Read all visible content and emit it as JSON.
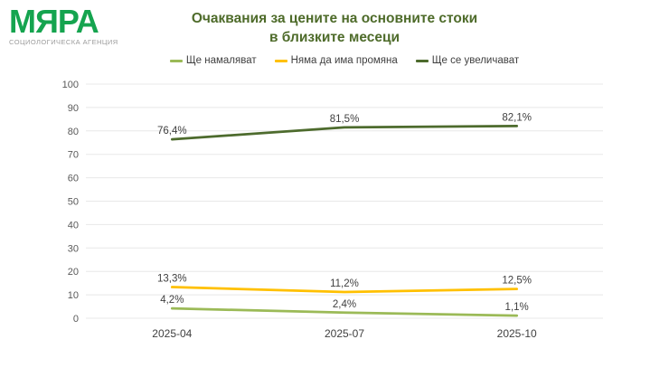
{
  "logo": {
    "brand": "МЯРА",
    "subtitle": "СОЦИОЛОГИЧЕСКА АГЕНЦИЯ",
    "brand_color": "#15a44f",
    "subtitle_color": "#9b9b9b"
  },
  "title": {
    "line1": "Очаквания за цените на основните стоки",
    "line2": "в близките месеци",
    "color": "#4e6b2a"
  },
  "legend": {
    "items": [
      {
        "label": "Ще намаляват",
        "color": "#9bba57"
      },
      {
        "label": "Няма да има промяна",
        "color": "#ffc000"
      },
      {
        "label": "Ще се увеличават",
        "color": "#4d6b2d"
      }
    ]
  },
  "chart_data": {
    "type": "line",
    "title": "Очаквания за цените на основните стоки в близките месеци",
    "categories": [
      "2025-04",
      "2025-07",
      "2025-10"
    ],
    "series": [
      {
        "name": "Ще намаляват",
        "values": [
          4.2,
          2.4,
          1.1
        ],
        "labels": [
          "4,2%",
          "2,4%",
          "1,1%"
        ],
        "color": "#9bba57"
      },
      {
        "name": "Няма да има промяна",
        "values": [
          13.3,
          11.2,
          12.5
        ],
        "labels": [
          "13,3%",
          "11,2%",
          "12,5%"
        ],
        "color": "#ffc000"
      },
      {
        "name": "Ще се увеличават",
        "values": [
          76.4,
          81.5,
          82.1
        ],
        "labels": [
          "76,4%",
          "81,5%",
          "82,1%"
        ],
        "color": "#4d6b2d"
      }
    ],
    "xlabel": "",
    "ylabel": "",
    "ylim": [
      0,
      100
    ],
    "y_ticks": [
      0,
      10,
      20,
      30,
      40,
      50,
      60,
      70,
      80,
      90,
      100
    ],
    "grid": true,
    "legend_position": "top",
    "gridline_color": "#e8e8e8",
    "tick_label_color": "#595959",
    "x_label_color": "#404040",
    "data_label_color": "#3f3f3f"
  }
}
